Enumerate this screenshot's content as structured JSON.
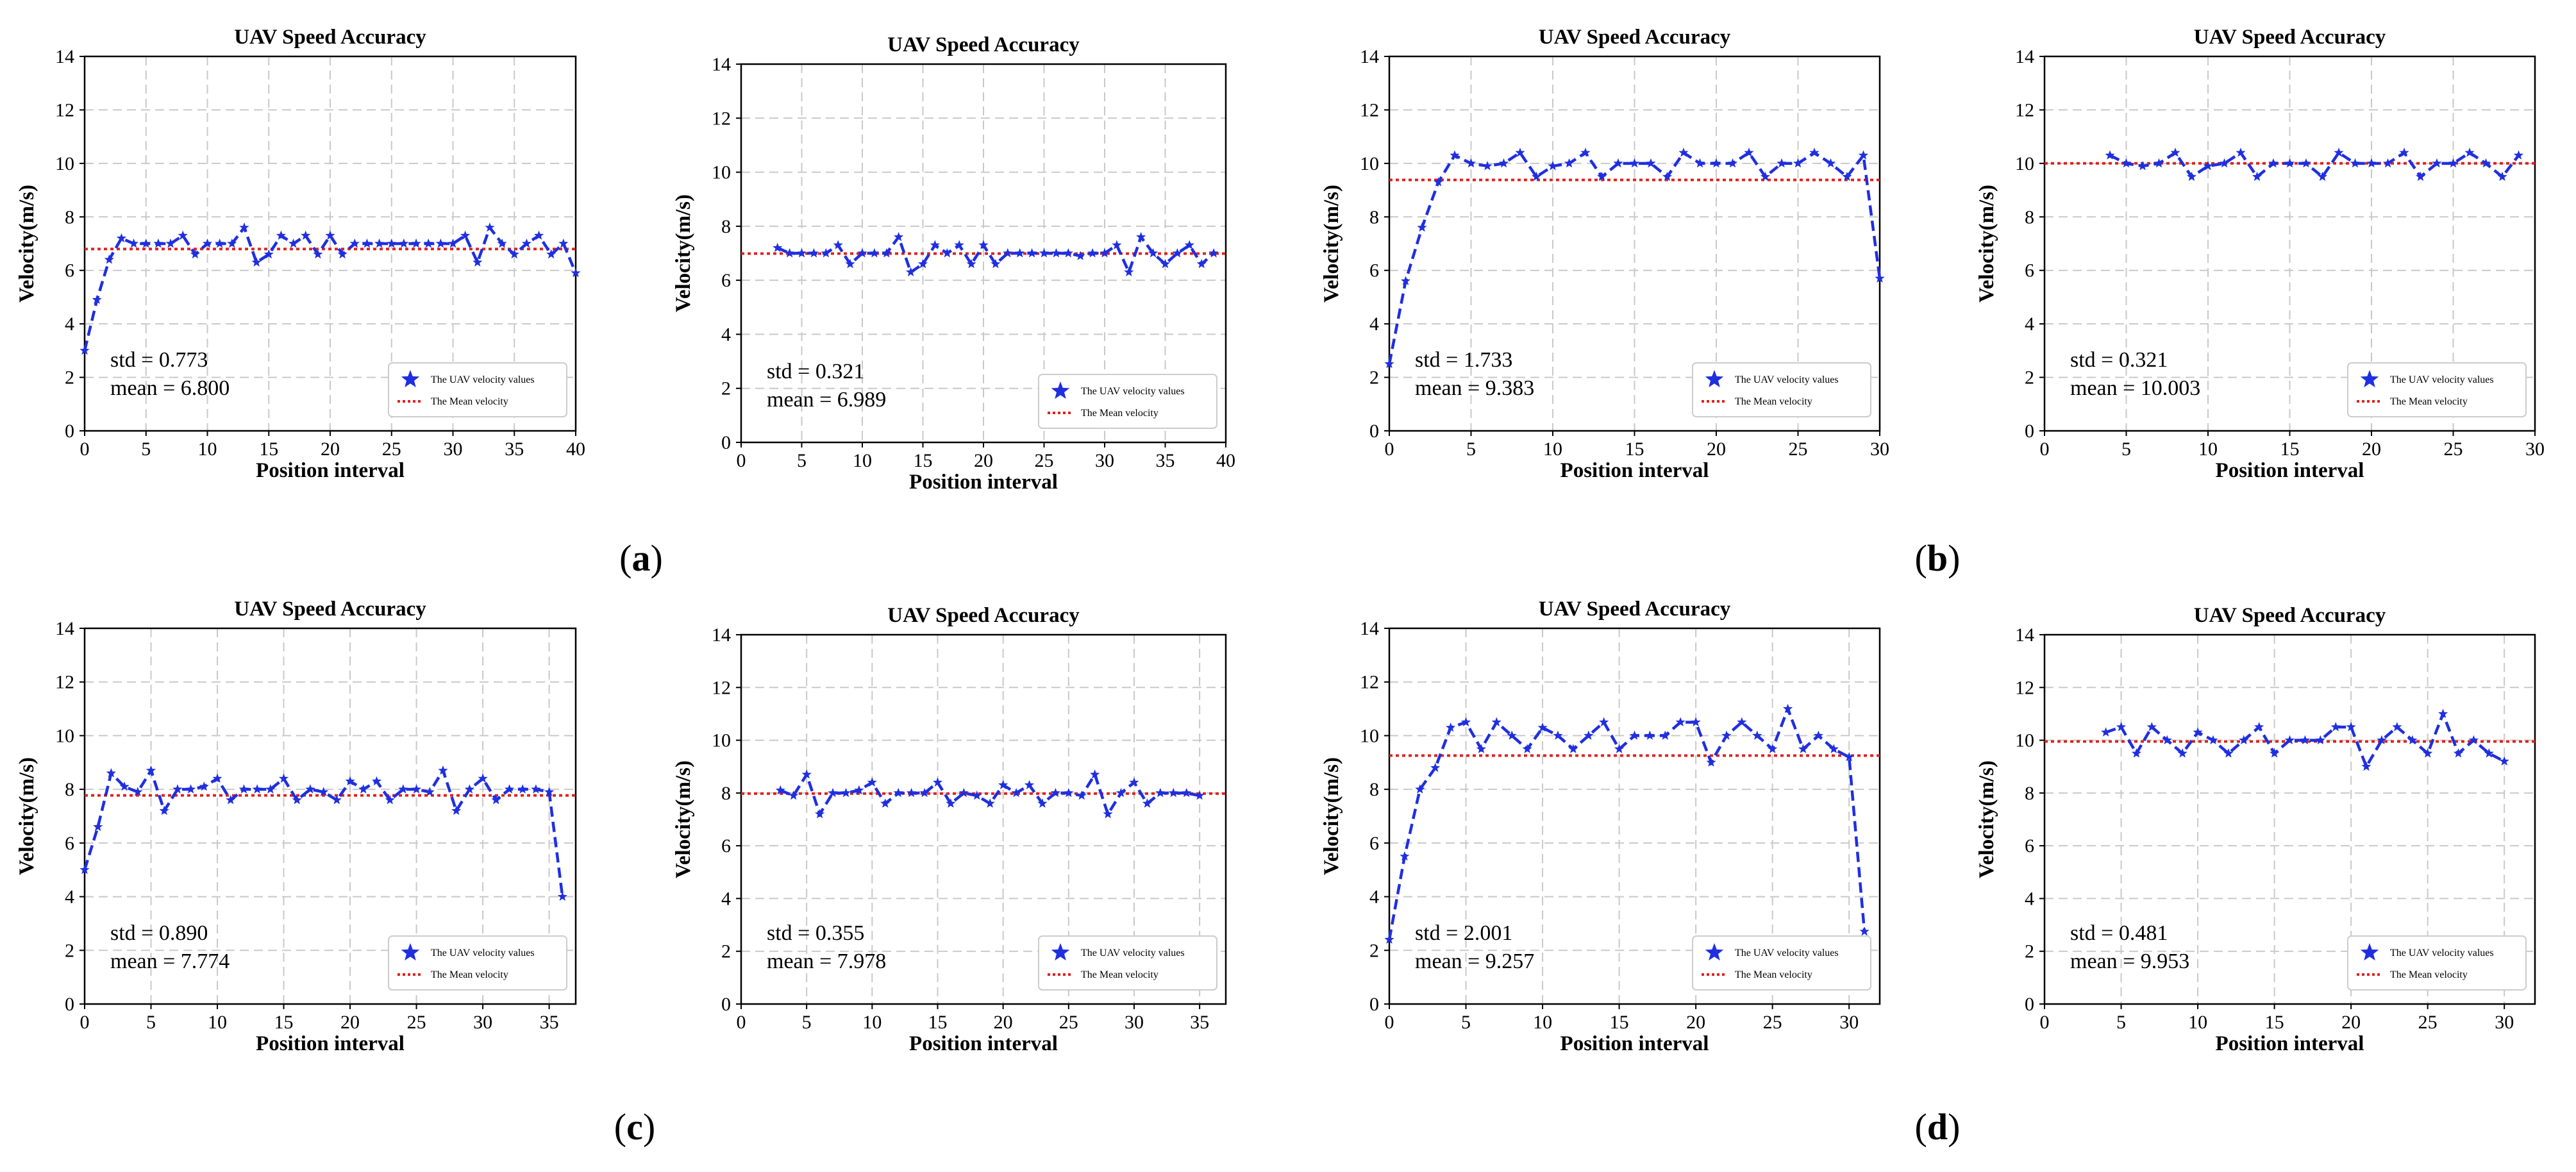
{
  "colors": {
    "series": "#1f2fe0",
    "mean": "#e0201c",
    "grid": "#c9c9c9",
    "axis": "#000000",
    "text": "#000000"
  },
  "panel_labels": [
    {
      "open": "(",
      "letter": "a",
      "close": ")"
    },
    {
      "open": "(",
      "letter": "b",
      "close": ")"
    },
    {
      "open": "(",
      "letter": "c",
      "close": ")"
    },
    {
      "open": "(",
      "letter": "d",
      "close": ")"
    }
  ],
  "chart_data": [
    {
      "type": "line",
      "title": "UAV Speed Accuracy",
      "xlabel": "Position interval",
      "ylabel": "Velocity(m/s)",
      "xlim": [
        0,
        40
      ],
      "ylim": [
        0,
        14
      ],
      "xticks": [
        0,
        5,
        10,
        15,
        20,
        25,
        30,
        35,
        40
      ],
      "yticks": [
        0,
        2,
        4,
        6,
        8,
        10,
        12,
        14
      ],
      "grid": true,
      "x": [
        0,
        1,
        2,
        3,
        4,
        5,
        6,
        7,
        8,
        9,
        10,
        11,
        12,
        13,
        14,
        15,
        16,
        17,
        18,
        19,
        20,
        21,
        22,
        23,
        24,
        25,
        26,
        27,
        28,
        29,
        30,
        31,
        32,
        33,
        34,
        35,
        36,
        37,
        38,
        39,
        40
      ],
      "series": [
        {
          "name": "The UAV velocity values",
          "values": [
            3.0,
            4.9,
            6.4,
            7.2,
            7.0,
            7.0,
            7.0,
            7.0,
            7.3,
            6.6,
            7.0,
            7.0,
            7.0,
            7.6,
            6.3,
            6.6,
            7.3,
            7.0,
            7.3,
            6.6,
            7.3,
            6.6,
            7.0,
            7.0,
            7.0,
            7.0,
            7.0,
            7.0,
            7.0,
            7.0,
            7.0,
            7.3,
            6.3,
            7.6,
            7.0,
            6.6,
            7.0,
            7.3,
            6.6,
            7.0,
            5.9
          ]
        }
      ],
      "mean_line": {
        "name": "The Mean velocity",
        "value": 6.8
      },
      "legend": "lower-right",
      "stats": {
        "std": "std = 0.773",
        "mean": "mean = 6.800"
      }
    },
    {
      "type": "line",
      "title": "UAV Speed Accuracy",
      "xlabel": "Position interval",
      "ylabel": "Velocity(m/s)",
      "xlim": [
        0,
        40
      ],
      "ylim": [
        0,
        14
      ],
      "xticks": [
        0,
        5,
        10,
        15,
        20,
        25,
        30,
        35,
        40
      ],
      "yticks": [
        0,
        2,
        4,
        6,
        8,
        10,
        12,
        14
      ],
      "grid": true,
      "x": [
        3,
        4,
        5,
        6,
        7,
        8,
        9,
        10,
        11,
        12,
        13,
        14,
        15,
        16,
        17,
        18,
        19,
        20,
        21,
        22,
        23,
        24,
        25,
        26,
        27,
        28,
        29,
        30,
        31,
        32,
        33,
        34,
        35,
        36,
        37,
        38,
        39
      ],
      "series": [
        {
          "name": "The UAV velocity values",
          "values": [
            7.2,
            7.0,
            7.0,
            7.0,
            7.0,
            7.3,
            6.6,
            7.0,
            7.0,
            7.0,
            7.6,
            6.3,
            6.6,
            7.3,
            7.0,
            7.3,
            6.6,
            7.3,
            6.6,
            7.0,
            7.0,
            7.0,
            7.0,
            7.0,
            7.0,
            6.9,
            7.0,
            7.0,
            7.3,
            6.3,
            7.6,
            7.0,
            6.6,
            7.0,
            7.3,
            6.6,
            7.0
          ]
        }
      ],
      "mean_line": {
        "name": "The Mean velocity",
        "value": 6.989
      },
      "legend": "lower-right",
      "stats": {
        "std": "std = 0.321",
        "mean": "mean = 6.989"
      }
    },
    {
      "type": "line",
      "title": "UAV Speed Accuracy",
      "xlabel": "Position interval",
      "ylabel": "Velocity(m/s)",
      "xlim": [
        0,
        30
      ],
      "ylim": [
        0,
        14
      ],
      "xticks": [
        0,
        5,
        10,
        15,
        20,
        25,
        30
      ],
      "yticks": [
        0,
        2,
        4,
        6,
        8,
        10,
        12,
        14
      ],
      "grid": true,
      "x": [
        0,
        1,
        2,
        3,
        4,
        5,
        6,
        7,
        8,
        9,
        10,
        11,
        12,
        13,
        14,
        15,
        16,
        17,
        18,
        19,
        20,
        21,
        22,
        23,
        24,
        25,
        26,
        27,
        28,
        29,
        30
      ],
      "series": [
        {
          "name": "The UAV velocity values",
          "values": [
            2.5,
            5.6,
            7.6,
            9.3,
            10.3,
            10.0,
            9.9,
            10.0,
            10.4,
            9.5,
            9.9,
            10.0,
            10.4,
            9.5,
            10.0,
            10.0,
            10.0,
            9.5,
            10.4,
            10.0,
            10.0,
            10.0,
            10.4,
            9.5,
            10.0,
            10.0,
            10.4,
            10.0,
            9.5,
            10.3,
            5.7
          ]
        }
      ],
      "mean_line": {
        "name": "The Mean velocity",
        "value": 9.383
      },
      "legend": "lower-right",
      "stats": {
        "std": "std = 1.733",
        "mean": "mean = 9.383"
      }
    },
    {
      "type": "line",
      "title": "UAV Speed Accuracy",
      "xlabel": "Position interval",
      "ylabel": "Velocity(m/s)",
      "xlim": [
        0,
        30
      ],
      "ylim": [
        0,
        14
      ],
      "xticks": [
        0,
        5,
        10,
        15,
        20,
        25,
        30
      ],
      "yticks": [
        0,
        2,
        4,
        6,
        8,
        10,
        12,
        14
      ],
      "grid": true,
      "x": [
        4,
        5,
        6,
        7,
        8,
        9,
        10,
        11,
        12,
        13,
        14,
        15,
        16,
        17,
        18,
        19,
        20,
        21,
        22,
        23,
        24,
        25,
        26,
        27,
        28,
        29
      ],
      "series": [
        {
          "name": "The UAV velocity values",
          "values": [
            10.3,
            10.0,
            9.9,
            10.0,
            10.4,
            9.5,
            9.9,
            10.0,
            10.4,
            9.5,
            10.0,
            10.0,
            10.0,
            9.5,
            10.4,
            10.0,
            10.0,
            10.0,
            10.4,
            9.5,
            10.0,
            10.0,
            10.4,
            10.0,
            9.5,
            10.3
          ]
        }
      ],
      "mean_line": {
        "name": "The Mean velocity",
        "value": 10.003
      },
      "legend": "lower-right",
      "stats": {
        "std": "std = 0.321",
        "mean": "mean = 10.003"
      }
    },
    {
      "type": "line",
      "title": "UAV Speed Accuracy",
      "xlabel": "Position interval",
      "ylabel": "Velocity(m/s)",
      "xlim": [
        0,
        37
      ],
      "ylim": [
        0,
        14
      ],
      "xticks": [
        0,
        5,
        10,
        15,
        20,
        25,
        30,
        35
      ],
      "yticks": [
        0,
        2,
        4,
        6,
        8,
        10,
        12,
        14
      ],
      "grid": true,
      "x": [
        0,
        1,
        2,
        3,
        4,
        5,
        6,
        7,
        8,
        9,
        10,
        11,
        12,
        13,
        14,
        15,
        16,
        17,
        18,
        19,
        20,
        21,
        22,
        23,
        24,
        25,
        26,
        27,
        28,
        29,
        30,
        31,
        32,
        33,
        34,
        35,
        36
      ],
      "series": [
        {
          "name": "The UAV velocity values",
          "values": [
            5.0,
            6.6,
            8.6,
            8.1,
            7.9,
            8.7,
            7.2,
            8.0,
            8.0,
            8.1,
            8.4,
            7.6,
            8.0,
            8.0,
            8.0,
            8.4,
            7.6,
            8.0,
            7.9,
            7.6,
            8.3,
            8.0,
            8.3,
            7.6,
            8.0,
            8.0,
            7.9,
            8.7,
            7.2,
            8.0,
            8.4,
            7.6,
            8.0,
            8.0,
            8.0,
            7.9,
            4.0
          ]
        }
      ],
      "mean_line": {
        "name": "The Mean velocity",
        "value": 7.774
      },
      "legend": "lower-right",
      "stats": {
        "std": "std = 0.890",
        "mean": "mean = 7.774"
      }
    },
    {
      "type": "line",
      "title": "UAV Speed Accuracy",
      "xlabel": "Position interval",
      "ylabel": "Velocity(m/s)",
      "xlim": [
        0,
        37
      ],
      "ylim": [
        0,
        14
      ],
      "xticks": [
        0,
        5,
        10,
        15,
        20,
        25,
        30,
        35
      ],
      "yticks": [
        0,
        2,
        4,
        6,
        8,
        10,
        12,
        14
      ],
      "grid": true,
      "x": [
        3,
        4,
        5,
        6,
        7,
        8,
        9,
        10,
        11,
        12,
        13,
        14,
        15,
        16,
        17,
        18,
        19,
        20,
        21,
        22,
        23,
        24,
        25,
        26,
        27,
        28,
        29,
        30,
        31,
        32,
        33,
        34,
        35
      ],
      "series": [
        {
          "name": "The UAV velocity values",
          "values": [
            8.1,
            7.9,
            8.7,
            7.2,
            8.0,
            8.0,
            8.1,
            8.4,
            7.6,
            8.0,
            8.0,
            8.0,
            8.4,
            7.6,
            8.0,
            7.9,
            7.6,
            8.3,
            8.0,
            8.3,
            7.6,
            8.0,
            8.0,
            7.9,
            8.7,
            7.2,
            8.0,
            8.4,
            7.6,
            8.0,
            8.0,
            8.0,
            7.9
          ]
        }
      ],
      "mean_line": {
        "name": "The Mean velocity",
        "value": 7.978
      },
      "legend": "lower-right",
      "stats": {
        "std": "std = 0.355",
        "mean": "mean = 7.978"
      }
    },
    {
      "type": "line",
      "title": "UAV Speed Accuracy",
      "xlabel": "Position interval",
      "ylabel": "Velocity(m/s)",
      "xlim": [
        0,
        32
      ],
      "ylim": [
        0,
        14
      ],
      "xticks": [
        0,
        5,
        10,
        15,
        20,
        25,
        30
      ],
      "yticks": [
        0,
        2,
        4,
        6,
        8,
        10,
        12,
        14
      ],
      "grid": true,
      "x": [
        0,
        1,
        2,
        3,
        4,
        5,
        6,
        7,
        8,
        9,
        10,
        11,
        12,
        13,
        14,
        15,
        16,
        17,
        18,
        19,
        20,
        21,
        22,
        23,
        24,
        25,
        26,
        27,
        28,
        29,
        30,
        31
      ],
      "series": [
        {
          "name": "The UAV velocity values",
          "values": [
            2.4,
            5.5,
            8.0,
            8.8,
            10.3,
            10.5,
            9.5,
            10.5,
            10.0,
            9.5,
            10.3,
            10.0,
            9.5,
            10.0,
            10.5,
            9.5,
            10.0,
            10.0,
            10.0,
            10.5,
            10.5,
            9.0,
            10.0,
            10.5,
            10.0,
            9.5,
            11.0,
            9.5,
            10.0,
            9.5,
            9.2,
            2.7
          ]
        }
      ],
      "mean_line": {
        "name": "The Mean velocity",
        "value": 9.257
      },
      "legend": "lower-right",
      "stats": {
        "std": "std = 2.001",
        "mean": "mean = 9.257"
      }
    },
    {
      "type": "line",
      "title": "UAV Speed Accuracy",
      "xlabel": "Position interval",
      "ylabel": "Velocity(m/s)",
      "xlim": [
        0,
        32
      ],
      "ylim": [
        0,
        14
      ],
      "xticks": [
        0,
        5,
        10,
        15,
        20,
        25,
        30
      ],
      "yticks": [
        0,
        2,
        4,
        6,
        8,
        10,
        12,
        14
      ],
      "grid": true,
      "x": [
        4,
        5,
        6,
        7,
        8,
        9,
        10,
        11,
        12,
        13,
        14,
        15,
        16,
        17,
        18,
        19,
        20,
        21,
        22,
        23,
        24,
        25,
        26,
        27,
        28,
        29,
        30
      ],
      "series": [
        {
          "name": "The UAV velocity values",
          "values": [
            10.3,
            10.5,
            9.5,
            10.5,
            10.0,
            9.5,
            10.3,
            10.0,
            9.5,
            10.0,
            10.5,
            9.5,
            10.0,
            10.0,
            10.0,
            10.5,
            10.5,
            9.0,
            10.0,
            10.5,
            10.0,
            9.5,
            11.0,
            9.5,
            10.0,
            9.5,
            9.2
          ]
        }
      ],
      "mean_line": {
        "name": "The Mean velocity",
        "value": 9.953
      },
      "legend": "lower-right",
      "stats": {
        "std": "std = 0.481",
        "mean": "mean = 9.953"
      }
    }
  ]
}
